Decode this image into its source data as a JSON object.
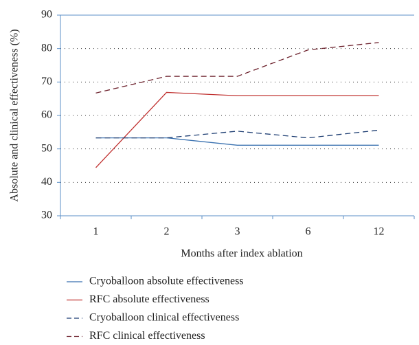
{
  "chart_data": {
    "type": "line",
    "x_label": "Months after index ablation",
    "y_label": "Absolute and clinical effectiveness (%)",
    "categories": [
      "1",
      "2",
      "3",
      "6",
      "12"
    ],
    "ylim": [
      30,
      90
    ],
    "yticks": [
      30,
      40,
      50,
      60,
      70,
      80,
      90
    ],
    "grid": true,
    "series": [
      {
        "name": "Cryoballoon absolute effectiveness",
        "color": "#3b72b0",
        "line_style": "solid",
        "values": [
          53.3,
          53.3,
          51.1,
          51.1,
          51.1
        ]
      },
      {
        "name": "RFC absolute effectiveness",
        "color": "#c0302f",
        "line_style": "solid",
        "values": [
          44.4,
          66.9,
          65.9,
          65.9,
          65.9
        ]
      },
      {
        "name": "Cryoballoon clinical effectiveness",
        "color": "#1f3f73",
        "line_style": "dashed",
        "values": [
          53.3,
          53.3,
          55.3,
          53.3,
          55.6
        ]
      },
      {
        "name": "RFC clinical effectiveness",
        "color": "#6b1f2a",
        "line_style": "dashed",
        "values": [
          66.7,
          71.7,
          71.7,
          79.6,
          81.8
        ]
      }
    ]
  }
}
